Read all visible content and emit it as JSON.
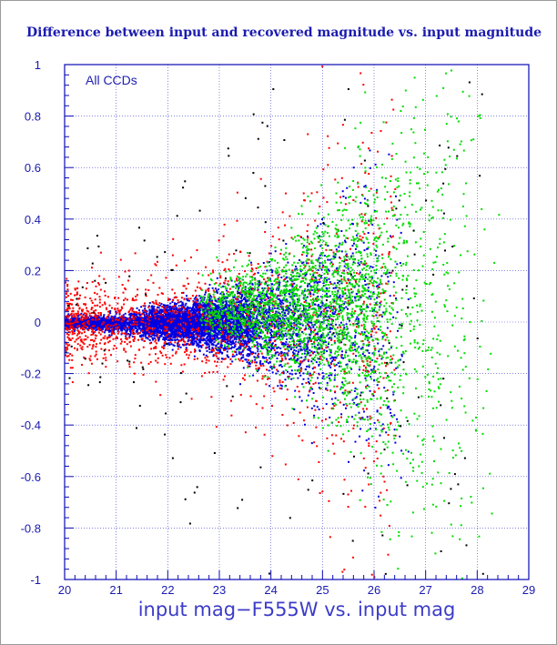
{
  "chart_data": {
    "type": "scatter",
    "title": "Difference between input and recovered magnitude vs. input magnitude",
    "xlabel": "input mag−F555W vs. input mag",
    "ylabel": "",
    "annotation": "All CCDs",
    "xlim": [
      20,
      29
    ],
    "ylim": [
      -1,
      1
    ],
    "xticks": [
      "20",
      "21",
      "22",
      "23",
      "24",
      "25",
      "26",
      "27",
      "28",
      "29"
    ],
    "yticks": [
      "-1",
      "-0.8",
      "-0.6",
      "-0.4",
      "-0.2",
      "0",
      "0.2",
      "0.4",
      "0.6",
      "0.8",
      "1"
    ],
    "grid": true,
    "series": [
      {
        "color": "#ff0000",
        "description": "sparse spread, strongest scatter at x=20.3-22.5; tight core near y=0",
        "x_center": 22.0,
        "x_range": [
          20,
          26.6
        ],
        "core_width_at_x20": 0.03
      },
      {
        "color": "#0000e0",
        "description": "dense core near y=0 for x=20-23, widening to fill -0.9..1 by x=24-26",
        "x_center": 23.5,
        "x_range": [
          20,
          27.3
        ]
      },
      {
        "color": "#00dd00",
        "description": "mostly x=23.5-27.2, wide scatter up to y=1",
        "x_center": 25.2,
        "x_range": [
          22.5,
          28.4
        ]
      },
      {
        "color": "#000000",
        "description": "few scattered points",
        "x_center": 23.5,
        "x_range": [
          20,
          28.2
        ]
      }
    ],
    "colors": {
      "axis": "#0a0ab4",
      "grid": "#3b3bd0",
      "background": "#ffffff",
      "frame": "#000000"
    }
  }
}
